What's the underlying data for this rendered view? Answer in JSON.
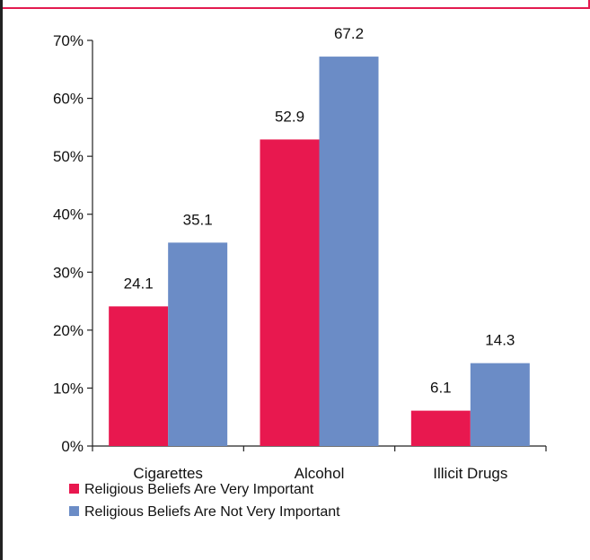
{
  "chart_data": {
    "type": "bar",
    "categories": [
      "Cigarettes",
      "Alcohol",
      "Illicit Drugs"
    ],
    "series": [
      {
        "name": "Religious Beliefs Are Very Important",
        "values": [
          24.1,
          52.9,
          6.1
        ],
        "labels": [
          "24.1",
          "52.9",
          "6.1"
        ],
        "color": "#e8184f"
      },
      {
        "name": "Religious Beliefs Are Not Very Important",
        "values": [
          35.1,
          67.2,
          14.3
        ],
        "labels": [
          "35.1",
          "67.2",
          "14.3"
        ],
        "color": "#6b8cc6"
      }
    ],
    "ylim": [
      0,
      70
    ],
    "yticks": [
      0,
      10,
      20,
      30,
      40,
      50,
      60,
      70
    ],
    "ytick_labels": [
      "0%",
      "10%",
      "20%",
      "30%",
      "40%",
      "50%",
      "60%",
      "70%"
    ],
    "grid": false,
    "legend_position": "bottom-left"
  }
}
